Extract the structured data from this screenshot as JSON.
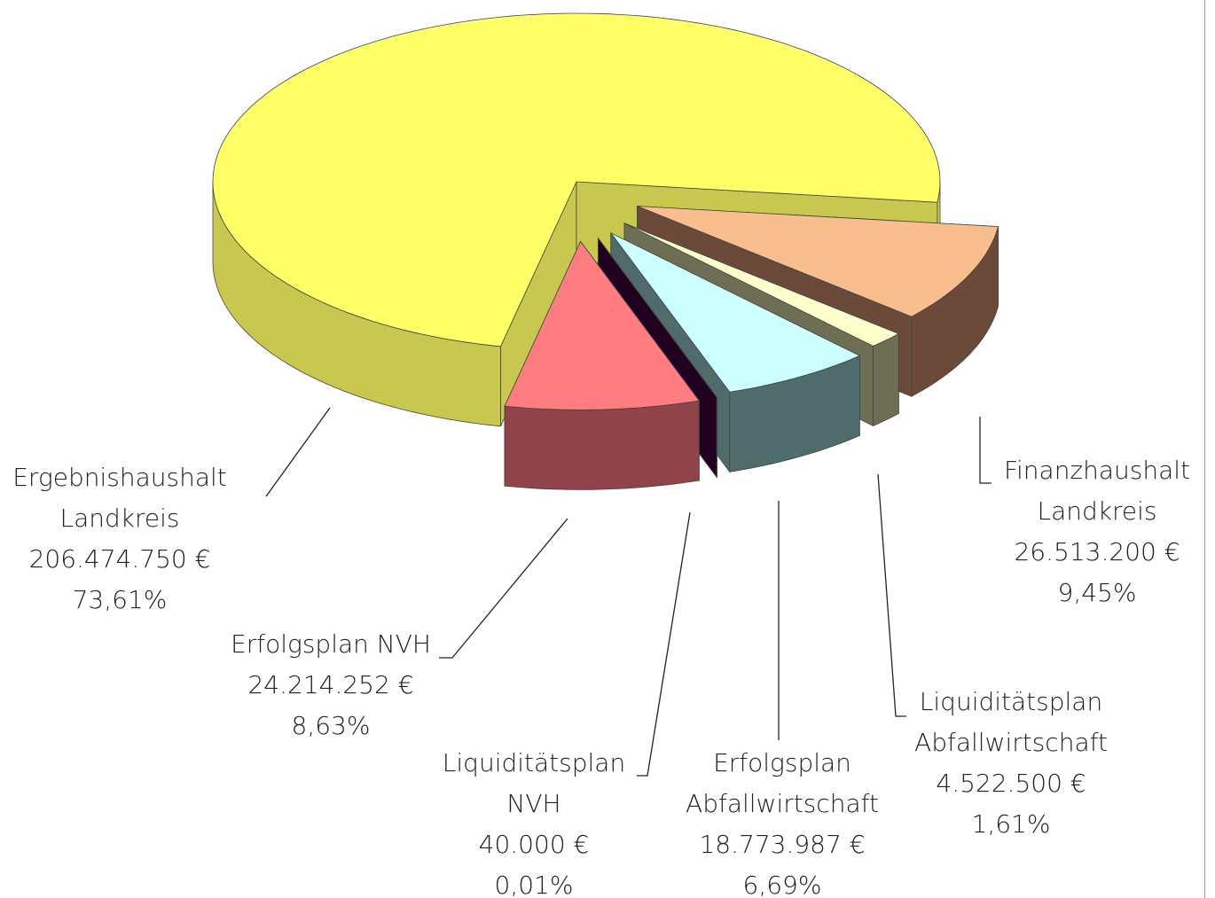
{
  "chart_data": {
    "type": "pie",
    "categories": [
      [
        "Ergebnishaushalt",
        "Landkreis"
      ],
      [
        "Finanzhaushalt",
        "Landkreis"
      ],
      [
        "Liquiditätsplan",
        "Abfallwirtschaft"
      ],
      [
        "Erfolgsplan",
        "Abfallwirtschaft"
      ],
      [
        "Liquiditätsplan",
        "NVH"
      ],
      [
        "Erfolgsplan NVH"
      ]
    ],
    "values": [
      206474750,
      26513200,
      4522500,
      18773987,
      40000,
      24214252
    ],
    "value_labels": [
      "206.474.750 €",
      "26.513.200 €",
      "4.522.500 €",
      "18.773.987 €",
      "40.000 €",
      "24.214.252 €"
    ],
    "percentages": [
      73.61,
      9.45,
      1.61,
      6.69,
      0.01,
      8.63
    ],
    "percentage_labels": [
      "73,61%",
      "9,45%",
      "1,61%",
      "6,69%",
      "0,01%",
      "8,63%"
    ],
    "colors": [
      "#ffff66",
      "#f9be8e",
      "#ffffcc",
      "#ccffff",
      "#3a0033",
      "#ff7c80"
    ],
    "side_colors": [
      "#c8c850",
      "#6b4a3a",
      "#6e6e55",
      "#4f6b6b",
      "#220020",
      "#8e4448"
    ]
  }
}
